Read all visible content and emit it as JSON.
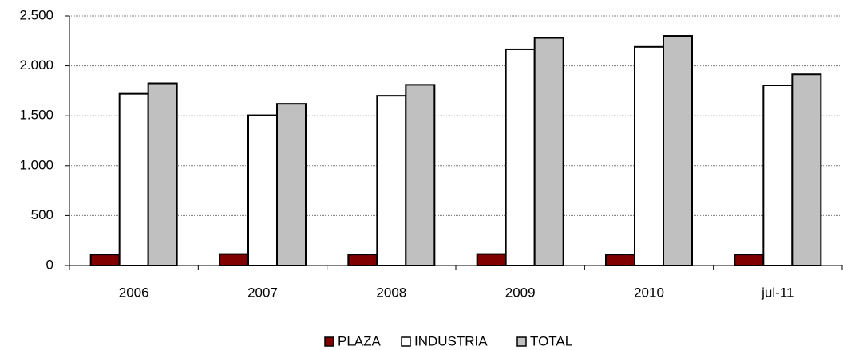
{
  "chart_data": {
    "type": "bar",
    "categories": [
      "2006",
      "2007",
      "2008",
      "2009",
      "2010",
      "jul-11"
    ],
    "series": [
      {
        "name": "PLAZA",
        "color": "#800000",
        "values": [
          110,
          115,
          110,
          115,
          110,
          110
        ]
      },
      {
        "name": "INDUSTRIA",
        "color": "#ffffff",
        "values": [
          1720,
          1505,
          1700,
          2165,
          2190,
          1805
        ]
      },
      {
        "name": "TOTAL",
        "color": "#c0c0c0",
        "values": [
          1825,
          1620,
          1810,
          2280,
          2300,
          1915
        ]
      }
    ],
    "ylim": [
      0,
      2500
    ],
    "yticks": [
      0,
      500,
      {
        "value": 1000,
        "label": "1.000"
      },
      {
        "value": 1500,
        "label": "1.500"
      },
      {
        "value": 2000,
        "label": "2.000"
      },
      {
        "value": 2500,
        "label": "2.500"
      }
    ],
    "grid": true,
    "legend": "bottom"
  }
}
